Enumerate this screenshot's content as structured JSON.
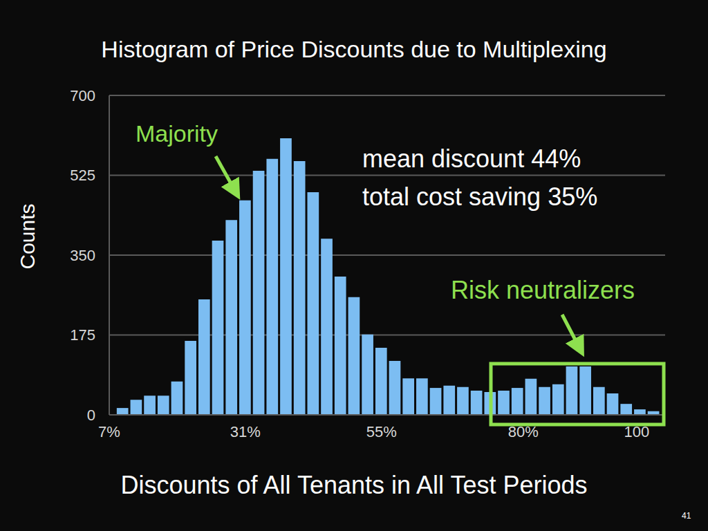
{
  "chart_data": {
    "type": "histogram",
    "title": "Histogram of Price Discounts due to Multiplexing",
    "x_label": "Discounts of All Tenants in All Test Periods",
    "y_label": "Counts",
    "bins": [
      8.2,
      10.6,
      13,
      15.4,
      17.8,
      20.2,
      22.6,
      25,
      27.4,
      29.8,
      32.2,
      34.6,
      37,
      39.4,
      41.8,
      44.2,
      46.6,
      49,
      51.4,
      53.8,
      56.2,
      58.6,
      61,
      63.4,
      65.8,
      68.2,
      70.6,
      73,
      75.4,
      77.8,
      80.2,
      82.6,
      85,
      87.4,
      89.8,
      92.2,
      94.6,
      97,
      99.4,
      101.8,
      104.2
    ],
    "counts": [
      15,
      33,
      42,
      42,
      73,
      162,
      253,
      382,
      427,
      470,
      535,
      561,
      606,
      556,
      488,
      386,
      303,
      258,
      176,
      147,
      118,
      80,
      80,
      59,
      64,
      61,
      53,
      50,
      53,
      59,
      79,
      61,
      67,
      106,
      106,
      61,
      47,
      24,
      12,
      8
    ],
    "color": "#7cbdf2",
    "xlim": [
      7,
      105
    ],
    "xticks": [
      {
        "value": 7,
        "label": "7%"
      },
      {
        "value": 31,
        "label": "31%"
      },
      {
        "value": 55,
        "label": "55%"
      },
      {
        "value": 80,
        "label": "80%"
      },
      {
        "value": 100,
        "label": "100"
      }
    ],
    "ylim": [
      0,
      700
    ],
    "yticks": [
      0,
      175,
      350,
      525,
      700
    ],
    "grid": true,
    "annotations": [
      "Majority",
      "mean discount 44%",
      "total cost saving 35%",
      "Risk neutralizers",
      "41"
    ]
  }
}
